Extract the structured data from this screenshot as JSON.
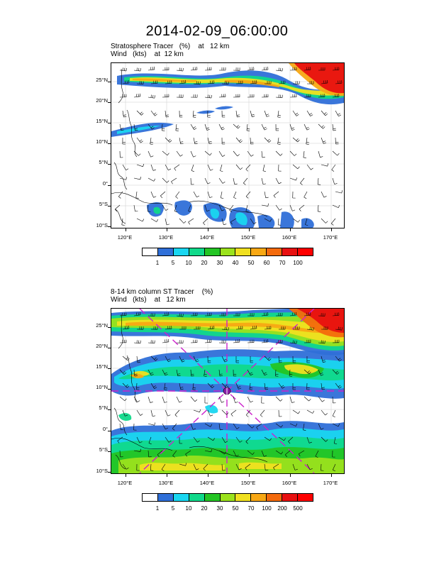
{
  "page_title": "2014-02-09_06:00:00",
  "panels": [
    {
      "label_line1": "Stratosphere Tracer   (%)    at   12 km",
      "label_line2": "Wind   (kts)    at  12 km",
      "colorbar": {
        "labels": [
          "1",
          "5",
          "10",
          "20",
          "30",
          "40",
          "50",
          "60",
          "70",
          "100"
        ],
        "colors": [
          "#ffffff",
          "#2f6fd8",
          "#19d6f0",
          "#10d98a",
          "#24c524",
          "#9be21c",
          "#f0e020",
          "#f8a814",
          "#f46a0c",
          "#e81010",
          "#ff0000"
        ]
      }
    },
    {
      "label_line1": "8-14 km column ST Tracer    (%)",
      "label_line2": "Wind   (kts)    at   12 km",
      "colorbar": {
        "labels": [
          "1",
          "5",
          "10",
          "20",
          "30",
          "50",
          "70",
          "100",
          "200",
          "500"
        ],
        "colors": [
          "#ffffff",
          "#2f6fd8",
          "#19d6f0",
          "#10d98a",
          "#24c524",
          "#9be21c",
          "#f0e020",
          "#f8a814",
          "#f46a0c",
          "#e81010",
          "#ff0000"
        ]
      }
    }
  ],
  "axes": {
    "lat_labels": [
      "25°N",
      "20°N",
      "15°N",
      "10°N",
      "5°N",
      "0°",
      "5°S",
      "10°S"
    ],
    "lon_labels": [
      "120°E",
      "130°E",
      "140°E",
      "150°E",
      "160°E",
      "170°E"
    ],
    "lat_range": [
      -10,
      29
    ],
    "lon_range": [
      116,
      172
    ]
  },
  "field_colors": {
    "blue": "#2f6fd8",
    "cyan": "#19d6f0",
    "teal": "#10d98a",
    "green": "#24c524",
    "lime": "#9be21c",
    "yellow": "#f0e020",
    "orange": "#f8a814",
    "dorange": "#f46a0c",
    "red": "#e81010",
    "marker": "#cc22cc",
    "marker_center": "#8a1aa6"
  },
  "icons": [
    "wind-barb-icon",
    "coastline-icon",
    "storm-center-icon"
  ]
}
